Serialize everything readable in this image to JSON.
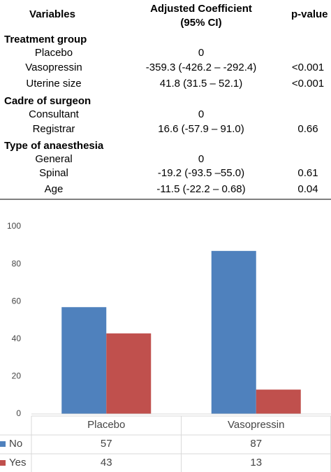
{
  "table": {
    "header": {
      "variables": "Variables",
      "coefficient": [
        "Adjusted Coefficient",
        "(95% CI)"
      ],
      "p_value": "p-value"
    },
    "sections": [
      {
        "title": "Treatment group",
        "rows": [
          [
            "Placebo",
            "0"
          ],
          [
            "Vasopressin",
            "-359.3 (-426.2 – -292.4)",
            "<0.001"
          ],
          [
            "Uterine size",
            "41.8 (31.5 – 52.1)",
            "<0.001"
          ]
        ]
      },
      {
        "title": "Cadre of surgeon",
        "rows": [
          [
            "Consultant",
            "0"
          ],
          [
            "Registrar",
            "16.6 (-57.9 – 91.0)",
            "0.66"
          ]
        ]
      },
      {
        "title": "Type of anaesthesia",
        "rows": [
          [
            "General",
            "0"
          ],
          [
            "Spinal",
            "-19.2 (-93.5 –55.0)",
            "0.61"
          ],
          [
            "Age",
            "-11.5 (-22.2 – 0.68)",
            "0.04"
          ]
        ]
      }
    ]
  },
  "chart_data": {
    "type": "bar",
    "categories": [
      "Placebo",
      "Vasopressin"
    ],
    "series": [
      {
        "name": "No",
        "color": "#4f81bd",
        "values": [
          57,
          87
        ]
      },
      {
        "name": "Yes",
        "color": "#c0504d",
        "values": [
          43,
          13
        ]
      }
    ],
    "ylim": [
      0,
      100
    ],
    "yticks": [
      0,
      20,
      40,
      60,
      80,
      100
    ],
    "grid": false,
    "legend": "data-table"
  }
}
